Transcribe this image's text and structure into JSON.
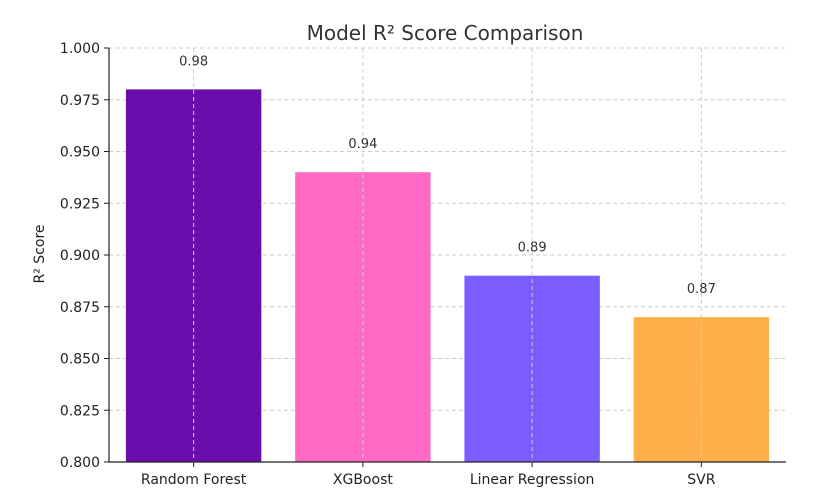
{
  "chart_data": {
    "type": "bar",
    "title": "Model R² Score Comparison",
    "xlabel": "",
    "ylabel": "R² Score",
    "categories": [
      "Random Forest",
      "XGBoost",
      "Linear Regression",
      "SVR"
    ],
    "values": [
      0.98,
      0.94,
      0.89,
      0.87
    ],
    "data_labels": [
      "0.98",
      "0.94",
      "0.89",
      "0.87"
    ],
    "colors": [
      "#6a0dad",
      "#ff69c4",
      "#7b5cff",
      "#ffb04a"
    ],
    "ylim": [
      0.8,
      1.0
    ],
    "yticks": [
      0.8,
      0.825,
      0.85,
      0.875,
      0.9,
      0.925,
      0.95,
      0.975,
      1.0
    ],
    "ytick_labels": [
      "0.800",
      "0.825",
      "0.850",
      "0.875",
      "0.900",
      "0.925",
      "0.950",
      "0.975",
      "1.000"
    ],
    "grid": true,
    "legend": "none"
  }
}
